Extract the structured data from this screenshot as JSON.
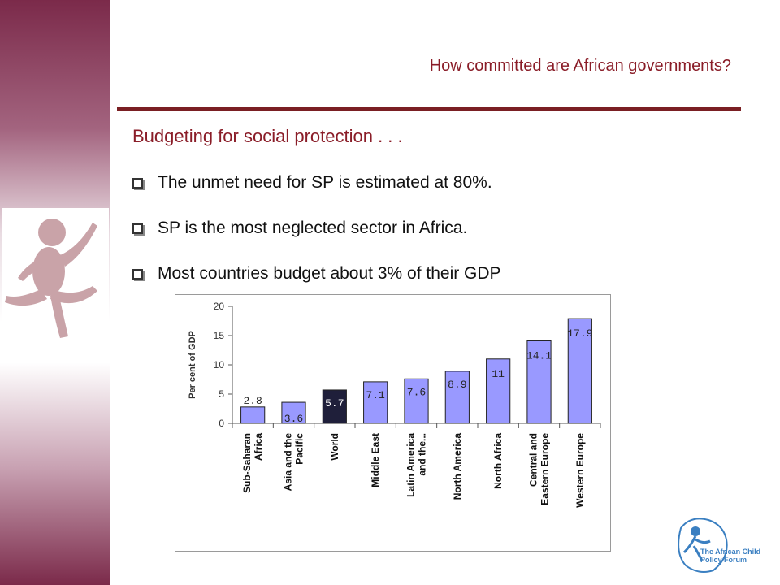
{
  "slide": {
    "title": "How committed are African governments?",
    "subheading": "Budgeting for social protection . . .",
    "bullets": [
      "The unmet need for SP is estimated at 80%.",
      "SP is the most neglected sector in Africa.",
      "Most countries budget about  3% of their GDP"
    ],
    "logo_lines": [
      "The African Child",
      "Policy Forum"
    ]
  },
  "colors": {
    "accent": "#8a1d28",
    "band": "#7b2a4a",
    "bar": "#9999ff",
    "bar_highlight": "#1f1f3a"
  },
  "chart_data": {
    "type": "bar",
    "categories": [
      "Sub-Saharan Africa",
      "Asia and the Pacific",
      "World",
      "Middle East",
      "Latin America and the...",
      "North America",
      "North Africa",
      "Central and Eastern Europe",
      "Western Europe"
    ],
    "category_lines": [
      [
        "Sub-Saharan",
        "Africa"
      ],
      [
        "Asia and the",
        "Pacific"
      ],
      [
        "World"
      ],
      [
        "Middle East"
      ],
      [
        "Latin America",
        "and the..."
      ],
      [
        "North America"
      ],
      [
        "North Africa"
      ],
      [
        "Central and",
        "Eastern Europe"
      ],
      [
        "Western Europe"
      ]
    ],
    "values": [
      2.8,
      3.6,
      5.7,
      7.1,
      7.6,
      8.9,
      11,
      14.1,
      17.9
    ],
    "value_labels": [
      "2.8",
      "3.6",
      "5.7",
      "7.1",
      "7.6",
      "8.9",
      "11",
      "14.1",
      "17.9"
    ],
    "highlight_index": 2,
    "ylabel": "Per cent of GDP",
    "ylim": [
      0,
      20
    ],
    "yticks": [
      0,
      5,
      10,
      15,
      20
    ],
    "grid": false
  }
}
